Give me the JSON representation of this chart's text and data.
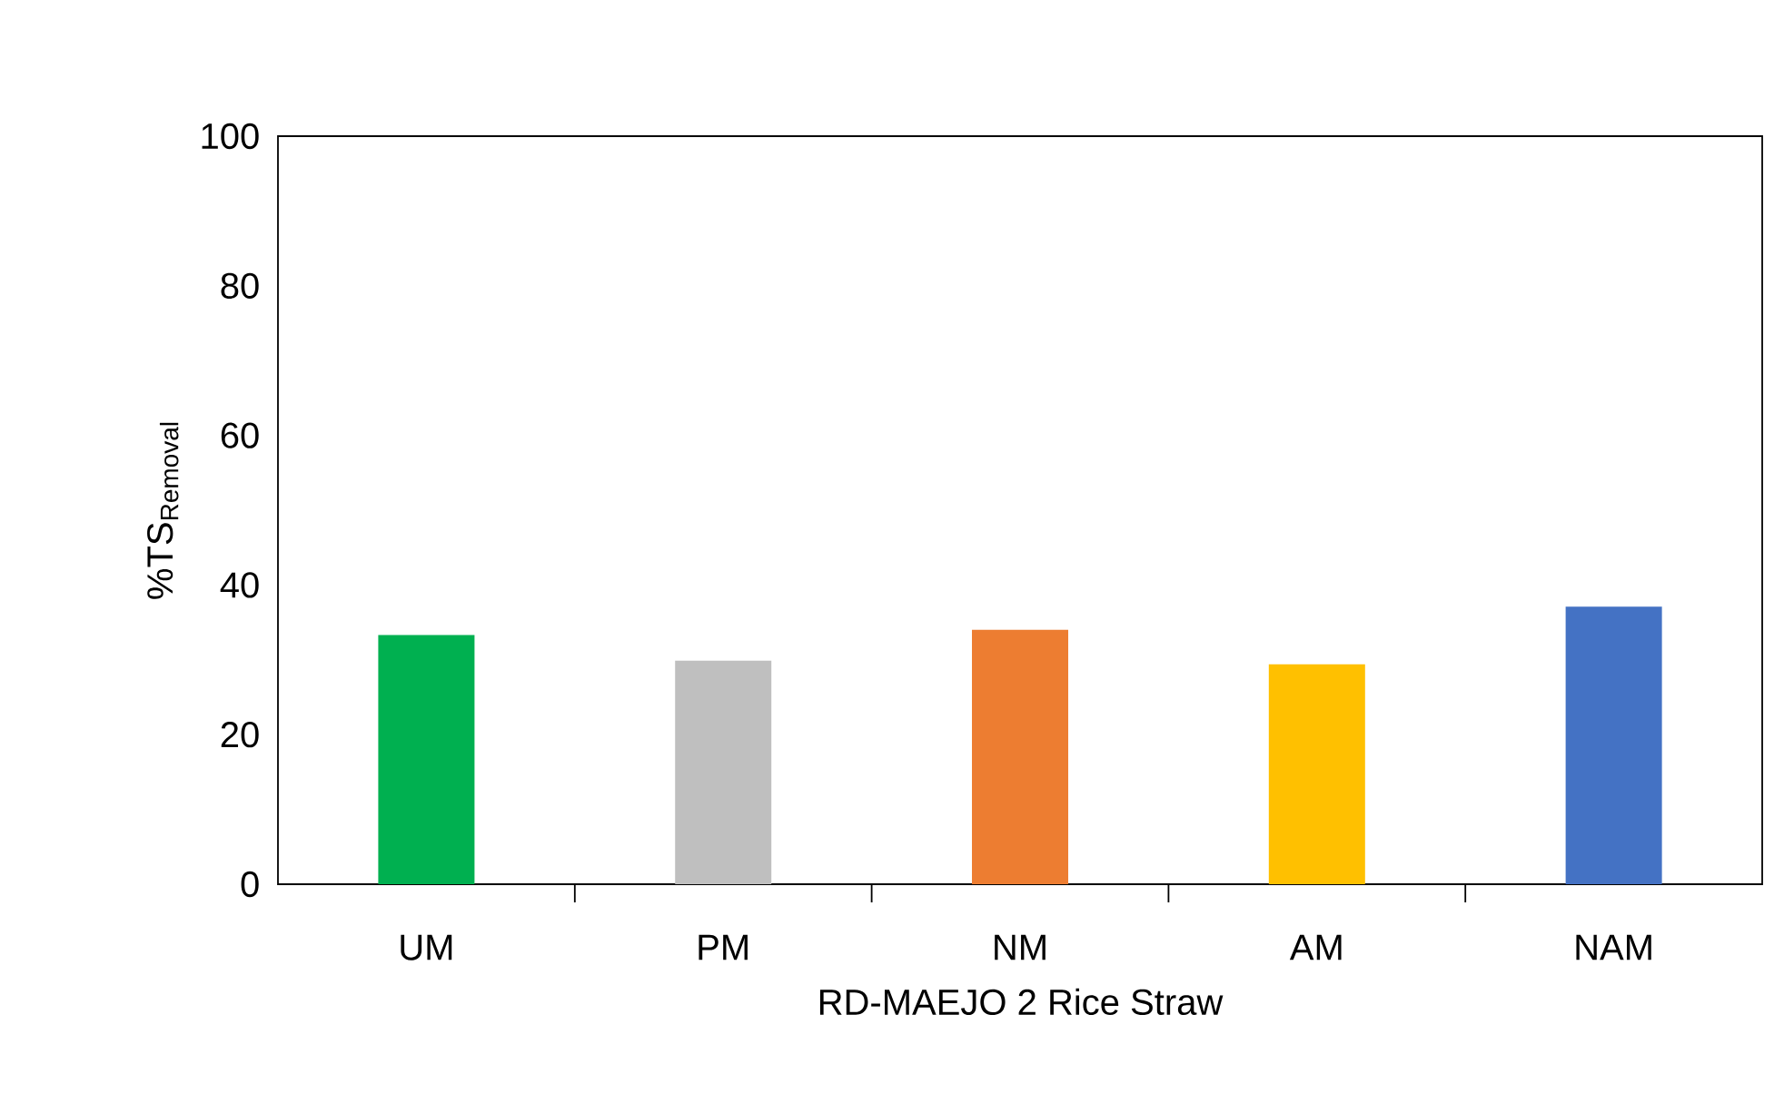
{
  "chart_data": {
    "type": "bar",
    "xlabel": "RD-MAEJO 2 Rice Straw",
    "ylabel": "%TS$_{Removal}$",
    "categories": [
      "UM",
      "PM",
      "NM",
      "AM",
      "NAM"
    ],
    "values": [
      33.3,
      29.9,
      34.0,
      29.4,
      37.1
    ],
    "colors": [
      "#00b050",
      "#bfbfbf",
      "#ed7d31",
      "#ffc000",
      "#4472c4"
    ],
    "ylim": [
      0,
      100
    ],
    "yticks": [
      0,
      20,
      40,
      60,
      80,
      100
    ],
    "grid": false
  }
}
